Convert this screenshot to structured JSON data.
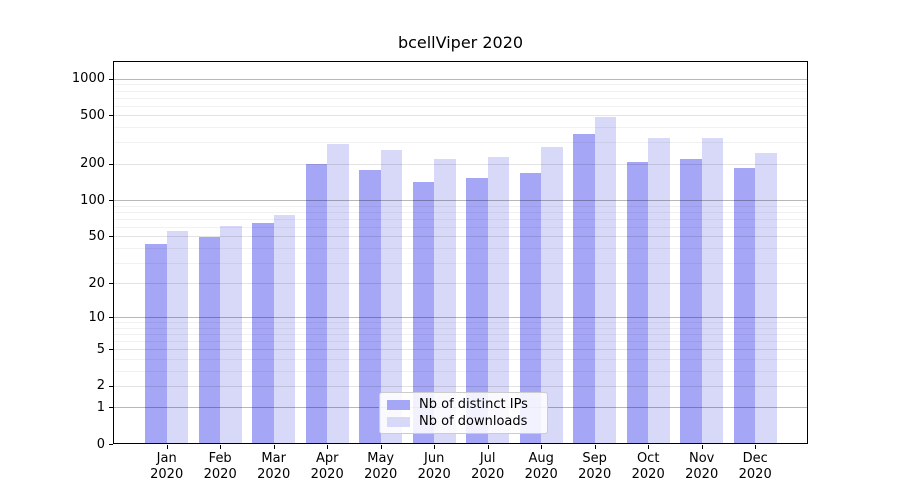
{
  "chart_data": {
    "type": "bar",
    "title": "bcellViper 2020",
    "categories": [
      "Jan",
      "Feb",
      "Mar",
      "Apr",
      "May",
      "Jun",
      "Jul",
      "Aug",
      "Sep",
      "Oct",
      "Nov",
      "Dec"
    ],
    "x_tick_year": "2020",
    "series": [
      {
        "name": "Nb of distinct IPs",
        "color": "#a6a6f6",
        "values": [
          43,
          49,
          65,
          197,
          177,
          142,
          153,
          167,
          350,
          208,
          217,
          183
        ]
      },
      {
        "name": "Nb of downloads",
        "color": "#d8d8f9",
        "values": [
          55,
          61,
          75,
          292,
          259,
          217,
          228,
          276,
          485,
          324,
          328,
          244
        ]
      }
    ],
    "y_axis": {
      "scale": "log10(value+1)",
      "ticks": [
        1000,
        500,
        200,
        100,
        50,
        20,
        10,
        5,
        2,
        1,
        0
      ],
      "decade_ticks": [
        1,
        10,
        100,
        1000
      ],
      "minor_ticks": [
        900,
        800,
        700,
        600,
        400,
        300,
        90,
        80,
        70,
        60,
        40,
        30,
        9,
        8,
        7,
        6,
        4,
        3
      ],
      "ylim": [
        0,
        1400
      ]
    },
    "xlabel": "",
    "ylabel": "",
    "grid": true,
    "legend": {
      "position": "lower-center",
      "entries": [
        "Nb of distinct IPs",
        "Nb of downloads"
      ]
    }
  }
}
